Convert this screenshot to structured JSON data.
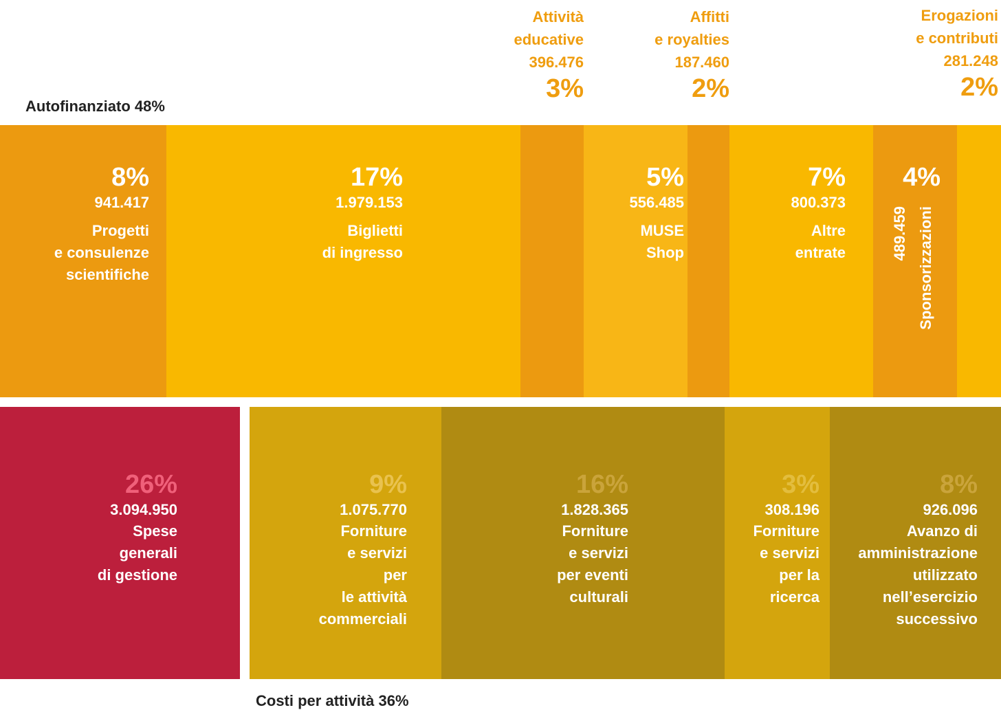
{
  "header": {
    "label": "Autofinanziato 48%"
  },
  "callouts": [
    {
      "title_lines": [
        "Attività",
        "educative"
      ],
      "amount": "396.476",
      "percent": "3%"
    },
    {
      "title_lines": [
        "Affitti",
        "e royalties"
      ],
      "amount": "187.460",
      "percent": "2%"
    },
    {
      "title_lines": [
        "Erogazioni",
        "e contributi"
      ],
      "amount": "281.248",
      "percent": "2%"
    }
  ],
  "revenue_tiles": [
    {
      "percent": "8%",
      "amount": "941.417",
      "label_lines": [
        "Progetti",
        "e consulenze",
        "scientifiche"
      ]
    },
    {
      "percent": "17%",
      "amount": "1.979.153",
      "label_lines": [
        "Biglietti",
        "di ingresso"
      ]
    },
    {
      "percent": "5%",
      "amount": "556.485",
      "label_lines": [
        "MUSE",
        "Shop"
      ]
    },
    {
      "percent": "7%",
      "amount": "800.373",
      "label_lines": [
        "Altre",
        "entrate"
      ]
    },
    {
      "percent": "4%",
      "amount": "489.459",
      "label_lines": [
        "Sponsorizzazioni"
      ]
    }
  ],
  "cost_tiles": [
    {
      "percent": "26%",
      "amount": "3.094.950",
      "label_lines": [
        "Spese",
        "generali",
        "di gestione"
      ]
    },
    {
      "percent": "9%",
      "amount": "1.075.770",
      "label_lines": [
        "Forniture",
        "e servizi",
        "per",
        "le attività",
        "commerciali"
      ]
    },
    {
      "percent": "16%",
      "amount": "1.828.365",
      "label_lines": [
        "Forniture",
        "e servizi",
        "per eventi",
        "culturali"
      ]
    },
    {
      "percent": "3%",
      "amount": "308.196",
      "label_lines": [
        "Forniture",
        "e servizi",
        "per la",
        "ricerca"
      ]
    },
    {
      "percent": "8%",
      "amount": "926.096",
      "label_lines": [
        "Avanzo di",
        "amministrazione",
        "utilizzato",
        "nell’esercizio",
        "successivo"
      ]
    }
  ],
  "footer": {
    "label": "Costi per attività 36%"
  }
}
